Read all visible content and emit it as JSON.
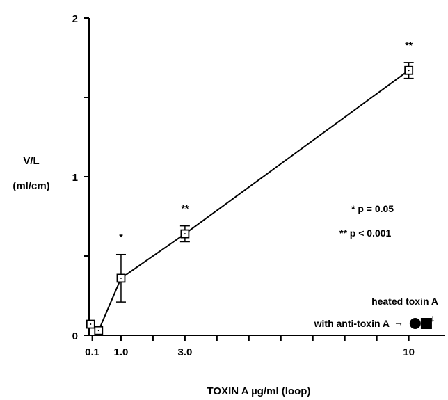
{
  "chart_data": {
    "type": "line",
    "title": "",
    "xlabel": "TOXIN A µg/ml (loop)",
    "ylabel": "V/L",
    "ylabel_unit": "(ml/cm)",
    "xlim": [
      0,
      11.4
    ],
    "ylim": [
      0,
      2
    ],
    "x_ticks": [
      {
        "value": 0.1,
        "label": "0.1"
      },
      {
        "value": 1.0,
        "label": "1.0"
      },
      {
        "value": 2.0,
        "label": ""
      },
      {
        "value": 3.0,
        "label": "3.0"
      },
      {
        "value": 4.0,
        "label": ""
      },
      {
        "value": 5.0,
        "label": ""
      },
      {
        "value": 6.0,
        "label": ""
      },
      {
        "value": 7.0,
        "label": ""
      },
      {
        "value": 8.0,
        "label": ""
      },
      {
        "value": 9.0,
        "label": ""
      },
      {
        "value": 10.0,
        "label": "10"
      }
    ],
    "y_ticks": [
      {
        "value": 0,
        "label": "0"
      },
      {
        "value": 0.5,
        "label": ""
      },
      {
        "value": 1,
        "label": "1"
      },
      {
        "value": 1.5,
        "label": ""
      },
      {
        "value": 2,
        "label": "2"
      }
    ],
    "grid": false,
    "series": [
      {
        "points": [
          {
            "x": 0.05,
            "y": 0.07,
            "err": 0.0,
            "sig": ""
          },
          {
            "x": 0.3,
            "y": 0.03,
            "err": 0.0,
            "sig": ""
          },
          {
            "x": 1.0,
            "y": 0.36,
            "err": 0.15,
            "sig": "*"
          },
          {
            "x": 3.0,
            "y": 0.64,
            "err": 0.05,
            "sig": "**"
          },
          {
            "x": 10.0,
            "y": 1.67,
            "err": 0.05,
            "sig": "**"
          }
        ]
      }
    ],
    "controls": {
      "with_antitoxin": {
        "x": 10.2,
        "y": 0.0,
        "label": "with anti-toxin A",
        "arrow": "→"
      },
      "heated_toxin": {
        "x": 10.55,
        "y": 0.0,
        "label": "heated toxin A",
        "arrow": "↓"
      }
    },
    "legend": {
      "p1": "* p = 0.05",
      "p2": "** p < 0.001"
    }
  }
}
